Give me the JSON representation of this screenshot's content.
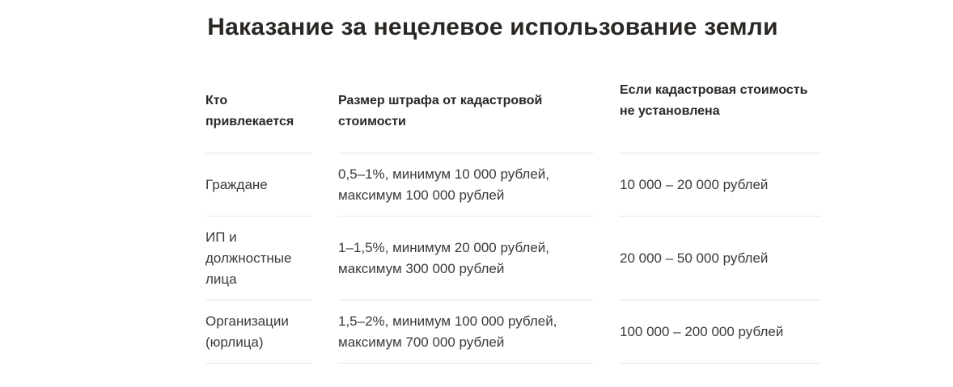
{
  "title": "Наказание за нецелевое использование земли",
  "table": {
    "headers": [
      "Кто привлекается",
      "Размер штрафа от кадастровой стоимости",
      "Если кадастровая стоимость не установлена"
    ],
    "rows": [
      [
        "Граждане",
        "0,5–1%, минимум 10 000 рублей, максимум 100 000 рублей",
        "10 000 – 20 000 рублей"
      ],
      [
        "ИП и должностные лица",
        "1–1,5%, минимум 20 000 рублей, максимум 300 000 рублей",
        "20 000 – 50 000 рублей"
      ],
      [
        "Организации (юрлица)",
        "1,5–2%, минимум 100 000 рублей, максимум 700 000 рублей",
        "100 000 – 200 000 рублей"
      ]
    ]
  }
}
